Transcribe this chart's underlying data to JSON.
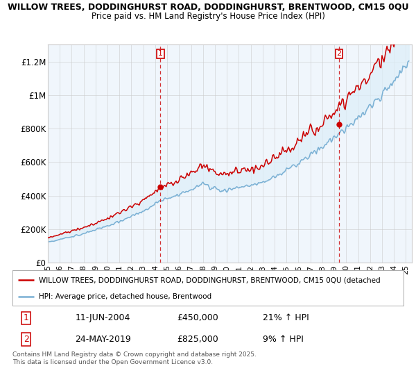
{
  "title1": "WILLOW TREES, DODDINGHURST ROAD, DODDINGHURST, BRENTWOOD, CM15 0QU",
  "title2": "Price paid vs. HM Land Registry's House Price Index (HPI)",
  "ylabel_ticks": [
    "£0",
    "£200K",
    "£400K",
    "£600K",
    "£800K",
    "£1M",
    "£1.2M"
  ],
  "ylabel_values": [
    0,
    200000,
    400000,
    600000,
    800000,
    1000000,
    1200000
  ],
  "ylim": [
    0,
    1300000
  ],
  "x_start_year": 1995,
  "x_end_year": 2025,
  "sale1_date": "11-JUN-2004",
  "sale1_price": 450000,
  "sale1_hpi": "21% ↑ HPI",
  "sale1_x": 2004.44,
  "sale2_date": "24-MAY-2019",
  "sale2_price": 825000,
  "sale2_hpi": "9% ↑ HPI",
  "sale2_x": 2019.39,
  "legend_line1": "WILLOW TREES, DODDINGHURST ROAD, DODDINGHURST, BRENTWOOD, CM15 0QU (detached",
  "legend_line2": "HPI: Average price, detached house, Brentwood",
  "footnote": "Contains HM Land Registry data © Crown copyright and database right 2025.\nThis data is licensed under the Open Government Licence v3.0.",
  "hpi_color": "#7ab0d4",
  "price_color": "#cc0000",
  "fill_color": "#ddeef8",
  "vline_color": "#cc0000",
  "background_color": "#ffffff",
  "chart_bg_color": "#f0f6fc",
  "grid_color": "#cccccc"
}
